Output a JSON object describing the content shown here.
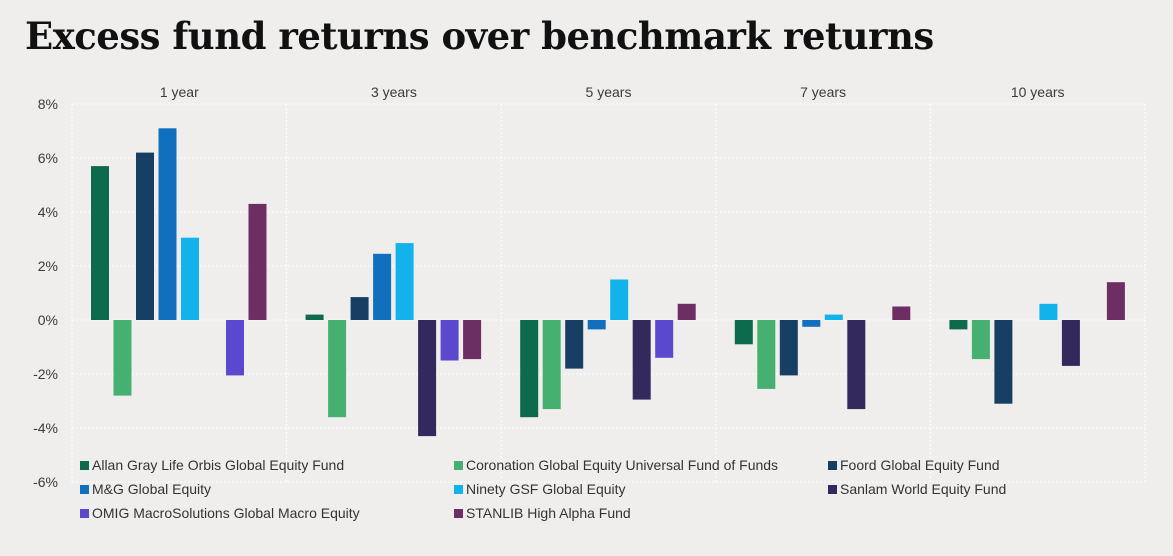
{
  "title": "Excess fund returns over benchmark returns",
  "colors": {
    "background": "#efeeec",
    "grid": "#ffffff",
    "Allan Gray Life Orbis Global Equity Fund": "#0e6a4d",
    "Coronation Global Equity Universal Fund of Funds": "#45b070",
    "Foord Global Equity Fund": "#173f63",
    "M&G Global Equity": "#1170bd",
    "Ninety GSF Global Equity": "#12b3ea",
    "Sanlam World Equity Fund": "#33295c",
    "OMIG MacroSolutions Global Macro Equity": "#5a48cf",
    "STANLIB High Alpha Fund": "#6c2e63"
  },
  "chart_data": {
    "type": "bar",
    "title": "Excess fund returns over benchmark returns",
    "xlabel": "",
    "ylabel": "",
    "ylim": [
      -6,
      8
    ],
    "y_ticks": [
      "8%",
      "6%",
      "4%",
      "2%",
      "0%",
      "-2%",
      "-4%",
      "-6%"
    ],
    "y_tick_values": [
      8,
      6,
      4,
      2,
      0,
      -2,
      -4,
      -6
    ],
    "y_unit": "%",
    "grid": true,
    "legend_position": "bottom",
    "categories": [
      "1 year",
      "3 years",
      "5 years",
      "7 years",
      "10 years"
    ],
    "series": [
      {
        "name": "Allan Gray Life Orbis Global Equity Fund",
        "values": [
          5.7,
          0.2,
          -3.6,
          -0.9,
          -0.35
        ]
      },
      {
        "name": "Coronation Global Equity Universal Fund of Funds",
        "values": [
          -2.8,
          -3.6,
          -3.3,
          -2.55,
          -1.45
        ]
      },
      {
        "name": "Foord Global Equity Fund",
        "values": [
          6.2,
          0.85,
          -1.8,
          -2.05,
          -3.1
        ]
      },
      {
        "name": "M&G Global Equity",
        "values": [
          7.1,
          2.45,
          -0.35,
          -0.25,
          null
        ]
      },
      {
        "name": "Ninety GSF Global Equity",
        "values": [
          3.05,
          2.85,
          1.5,
          0.2,
          0.6
        ]
      },
      {
        "name": "Sanlam World Equity Fund",
        "values": [
          null,
          -4.3,
          -2.95,
          -3.3,
          -1.7
        ]
      },
      {
        "name": "OMIG MacroSolutions Global Macro Equity",
        "values": [
          -2.05,
          -1.5,
          -1.4,
          null,
          null
        ]
      },
      {
        "name": "STANLIB High Alpha Fund",
        "values": [
          4.3,
          -1.45,
          0.6,
          0.5,
          1.4
        ]
      }
    ]
  }
}
